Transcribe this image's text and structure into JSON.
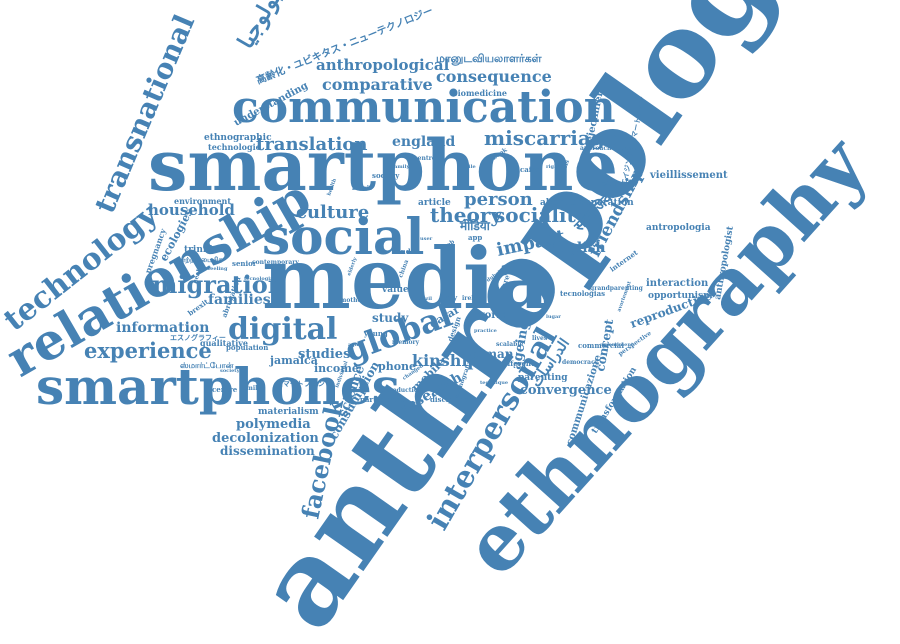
{
  "colors": {
    "ink": "#4682b4",
    "background": "#ffffff"
  },
  "cloud": {
    "words": {
      "anthropology": "anthropology",
      "ethnography": "ethnography",
      "smartphone": "smartphone",
      "media": "media",
      "communication": "communication",
      "smartphones": "smartphones",
      "social": "social",
      "relationship": "relationship",
      "technology": "technology",
      "transnational": "transnational",
      "digital": "digital",
      "global": "global",
      "migration": "migration",
      "experience": "experience",
      "facebook": "facebook",
      "interpersonal": "interpersonal",
      "comparative": "comparative",
      "consequence": "consequence",
      "anthropological": "anthropological",
      "miscarriage": "miscarriage",
      "translation": "translation",
      "sociality": "sociality",
      "theory": "theory",
      "person": "person",
      "culture": "culture",
      "impact": "impact",
      "english": "english",
      "england": "england",
      "household": "household",
      "families": "families",
      "information": "information",
      "polymedia": "polymedia",
      "decolonization": "decolonization",
      "dissemination": "dissemination",
      "kinship": "kinship",
      "studies": "studies",
      "income": "income",
      "phone": "phone",
      "convergence": "convergence",
      "research": "research",
      "consumption": "consumption",
      "science": "science",
      "friendship": "friendship",
      "reproductive": "reproductive",
      "opportunism": "opportunism",
      "interaction": "interaction",
      "understanding": "understanding",
      "ethnographic": "ethnographic",
      "technologie": "technologie",
      "environment": "environment",
      "materialism": "materialism",
      "jamaica": "jamaica",
      "woman": "woman",
      "mobile": "mobile",
      "concept": "concept",
      "parenting": "parenting",
      "study": "study",
      "qatar": "qatar",
      "world": "world",
      "value": "value",
      "article": "article",
      "abortion": "abortion",
      "separation": "separation",
      "vieillissement": "vieillissement",
      "antropologia": "antropologia",
      "envejecimiento": "envejecimiento",
      "biomedicine": "biomedicine",
      "ageing": "ageing",
      "communicazione": "communicazione",
      "transformation": "transformation",
      "ecologies": "ecologies",
      "pregnancy": "pregnancy",
      "trinidad": "trinidad",
      "qualitative": "qualitative",
      "population": "population",
      "anthropologist": "anthropologist",
      "arabic_anthropology": "الإنثروبولوجيا",
      "tamil_scholars": "மானுடவியலாளர்கள்",
      "japanese_ubiquitous": "高齢化・ユビキタス・ニューテクノロジー",
      "hindi_media": "मीडिया",
      "hindi_social": "सामाजिक",
      "arabic_studies": "الدراسات",
      "tamil_smartphone": "ஸ்மார்ட்போன்",
      "katakana_ethnography": "エスノグラフィー",
      "japanese_smartphone": "スマートフォン",
      "tamil_small": "மாற்றமடைகிற",
      "japanese_ageing": "エイジング・スマートフォン",
      "filler_set": [
        "health",
        "brexit",
        "society",
        "family",
        "centre",
        "more",
        "chile",
        "book",
        "cairo",
        "right",
        "analysis",
        "fieldwork",
        "platform",
        "approach",
        "internet",
        "avortement",
        "grandparenting",
        "tecnologias",
        "lugar",
        "lives",
        "care",
        "dubai",
        "ireland",
        "italy",
        "brazil",
        "china",
        "india",
        "user",
        "web",
        "app",
        "elderly",
        "mother",
        "young",
        "aging",
        "memory",
        "design",
        "practice",
        "scalable",
        "different",
        "technique",
        "ethnografia",
        "discipline",
        "changed",
        "introduction",
        "participant",
        "individual",
        "democracy",
        "commercial",
        "amendment",
        "perspective",
        "abrogation",
        "tecnologia",
        "contemporary",
        "senior",
        "feeling"
      ]
    }
  }
}
